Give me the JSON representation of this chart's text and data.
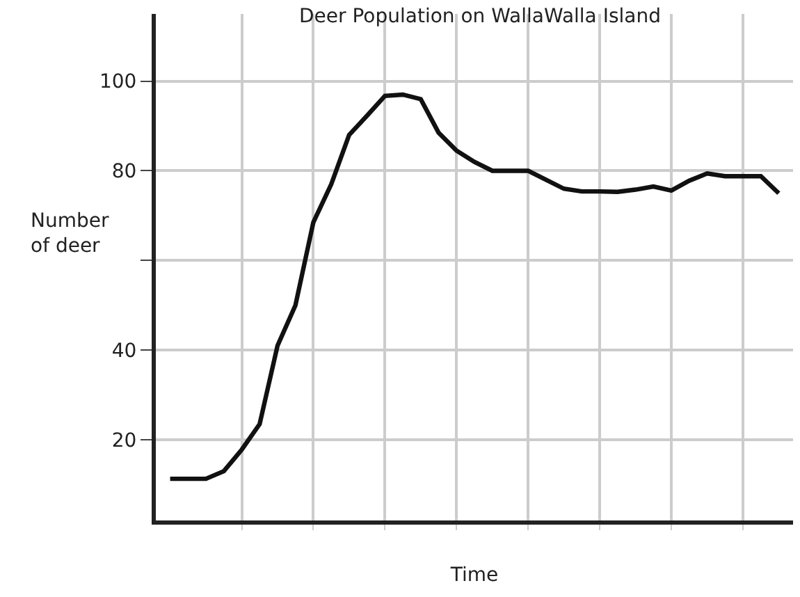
{
  "chart_data": {
    "type": "line",
    "title": "Deer Population on WallaWalla Island",
    "xlabel": "Time",
    "ylabel": "Number of deer",
    "categories": [
      null,
      null,
      null,
      null,
      null,
      null,
      null,
      null,
      null,
      null,
      null,
      null,
      null,
      null,
      null,
      null,
      null,
      null,
      null,
      null,
      null,
      null,
      null,
      null,
      null,
      null,
      null,
      null,
      null,
      null,
      null,
      null,
      null,
      null,
      null
    ],
    "series": [
      {
        "color": "#111111",
        "values": [
          11.3,
          11.3,
          11.3,
          13,
          17.8,
          23.5,
          41,
          50,
          68.5,
          77,
          88,
          92.3,
          96.7,
          97,
          96,
          88.5,
          84.5,
          82,
          80,
          80,
          80,
          78,
          76,
          75.4,
          75.4,
          75.3,
          75.8,
          76.5,
          75.6,
          77.8,
          79.4,
          78.8,
          78.8,
          78.8,
          75
        ]
      }
    ],
    "ylim": [
      2,
      115
    ],
    "yticks": [
      20,
      40,
      {
        "value": 60,
        "label": null
      },
      80,
      100
    ],
    "grid": true,
    "tick_labels": "y",
    "marker": "none",
    "line_style": "solid"
  }
}
